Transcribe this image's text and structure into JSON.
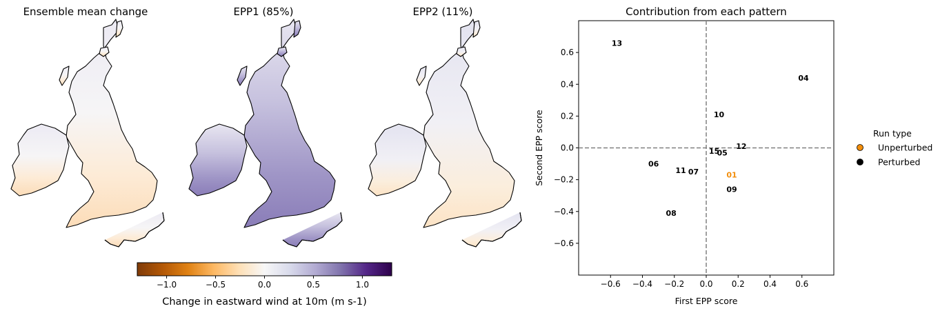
{
  "maps": [
    {
      "title": "Ensemble mean change",
      "style": "mean"
    },
    {
      "title": "EPP1 (85%)",
      "style": "epp1"
    },
    {
      "title": "EPP2 (11%)",
      "style": "epp2"
    }
  ],
  "colorbar": {
    "label": "Change in eastward wind at 10m (m s-1)",
    "range": [
      -1.3,
      1.3
    ],
    "ticks": [
      -1.0,
      -0.5,
      0.0,
      0.5,
      1.0
    ],
    "tick_labels": [
      "−1.0",
      "−0.5",
      "0.0",
      "0.5",
      "1.0"
    ],
    "colors": [
      "#7f3b08",
      "#b35806",
      "#e08214",
      "#fdb863",
      "#fee0b6",
      "#f7f7f7",
      "#d8daeb",
      "#b2abd2",
      "#8073ac",
      "#542788",
      "#2d004b"
    ]
  },
  "chart_data": {
    "type": "scatter",
    "title": "Contribution from each pattern",
    "xlabel": "First EPP score",
    "ylabel": "Second EPP score",
    "xlim": [
      -0.8,
      0.8
    ],
    "ylim": [
      -0.8,
      0.8
    ],
    "xticks": [
      -0.6,
      -0.4,
      -0.2,
      0.0,
      0.2,
      0.4,
      0.6
    ],
    "yticks": [
      -0.6,
      -0.4,
      -0.2,
      0.0,
      0.2,
      0.4,
      0.6
    ],
    "xtick_labels": [
      "−0.6",
      "−0.4",
      "−0.2",
      "0.0",
      "0.2",
      "0.4",
      "0.6"
    ],
    "ytick_labels": [
      "−0.6",
      "−0.4",
      "−0.2",
      "0.0",
      "0.2",
      "0.4",
      "0.6"
    ],
    "zero_lines": true,
    "points": [
      {
        "label": "13",
        "x": -0.56,
        "y": 0.66,
        "run_type": "Perturbed"
      },
      {
        "label": "04",
        "x": 0.61,
        "y": 0.44,
        "run_type": "Perturbed"
      },
      {
        "label": "10",
        "x": 0.08,
        "y": 0.21,
        "run_type": "Perturbed"
      },
      {
        "label": "12",
        "x": 0.22,
        "y": 0.01,
        "run_type": "Perturbed"
      },
      {
        "label": "15",
        "x": 0.05,
        "y": -0.02,
        "run_type": "Perturbed"
      },
      {
        "label": "05",
        "x": 0.1,
        "y": -0.03,
        "run_type": "Perturbed"
      },
      {
        "label": "06",
        "x": -0.33,
        "y": -0.1,
        "run_type": "Perturbed"
      },
      {
        "label": "11",
        "x": -0.16,
        "y": -0.14,
        "run_type": "Perturbed"
      },
      {
        "label": "07",
        "x": -0.08,
        "y": -0.15,
        "run_type": "Perturbed"
      },
      {
        "label": "01",
        "x": 0.16,
        "y": -0.17,
        "run_type": "Unperturbed"
      },
      {
        "label": "09",
        "x": 0.16,
        "y": -0.26,
        "run_type": "Perturbed"
      },
      {
        "label": "08",
        "x": -0.22,
        "y": -0.41,
        "run_type": "Perturbed"
      }
    ],
    "legend": {
      "title": "Run type",
      "placement": "right",
      "entries": [
        {
          "name": "Unperturbed",
          "color": "#f28e0c"
        },
        {
          "name": "Perturbed",
          "color": "#000000"
        }
      ]
    }
  }
}
